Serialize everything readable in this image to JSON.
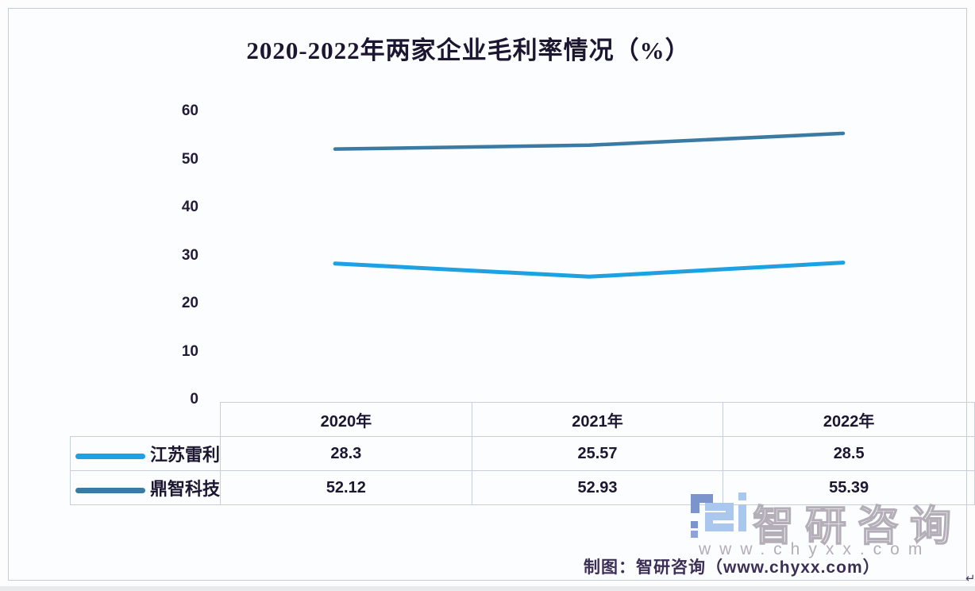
{
  "page": {
    "caption": "制图：智研咨询（www.chyxx.com）",
    "return_mark": "↵"
  },
  "watermark": {
    "brand": "智研咨询",
    "url": "www.chyxx.com",
    "logo_color_dark": "#7b94cc",
    "logo_color_light": "#aac7ee",
    "outline_color": "#b3aeb8"
  },
  "chart_data": {
    "type": "line",
    "title": "2020-2022年两家企业毛利率情况（%）",
    "categories": [
      "2020年",
      "2021年",
      "2022年"
    ],
    "series": [
      {
        "name": "江苏雷利",
        "values": [
          28.3,
          25.57,
          28.5
        ],
        "color": "#1da1e2"
      },
      {
        "name": "鼎智科技",
        "values": [
          52.12,
          52.93,
          55.39
        ],
        "color": "#3a7aa3"
      }
    ],
    "ylim": [
      0,
      60
    ],
    "yticks": [
      0,
      10,
      20,
      30,
      40,
      50,
      60
    ],
    "grid": false,
    "legend_position": "table-left",
    "xlabel": "",
    "ylabel": ""
  }
}
